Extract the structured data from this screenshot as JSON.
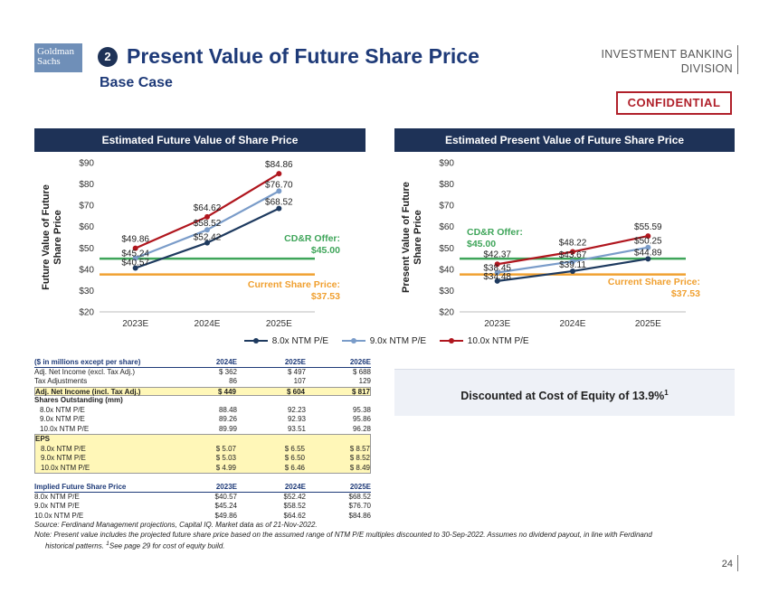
{
  "header": {
    "logo_line1": "Goldman",
    "logo_line2": "Sachs",
    "section_number": "2",
    "title": "Present Value of Future Share Price",
    "subtitle": "Base Case",
    "division_line1": "INVESTMENT BANKING",
    "division_line2": "DIVISION",
    "confidential": "CONFIDENTIAL"
  },
  "colors": {
    "navy": "#1e3257",
    "series_8x": "#1e3a5f",
    "series_9x": "#7a9cc9",
    "series_10x": "#b0161e",
    "offer_line": "#3fa55a",
    "current_price_line": "#f0a030"
  },
  "panels": {
    "left_title": "Estimated Future Value of Share Price",
    "right_title": "Estimated Present Value of Future Share Price"
  },
  "chart_data": [
    {
      "type": "line",
      "title": "Estimated Future Value of Share Price",
      "ylabel": "Future Value of Future Share Price",
      "categories": [
        "2023E",
        "2024E",
        "2025E"
      ],
      "ylim": [
        20,
        90
      ],
      "yticks": [
        "$20",
        "$30",
        "$40",
        "$50",
        "$60",
        "$70",
        "$80",
        "$90"
      ],
      "series": [
        {
          "name": "8.0x NTM P/E",
          "values": [
            40.57,
            52.42,
            68.52
          ],
          "labels": [
            "$40.57",
            "$52.42",
            "$68.52"
          ]
        },
        {
          "name": "9.0x NTM P/E",
          "values": [
            45.24,
            58.52,
            76.7
          ],
          "labels": [
            "$45.24",
            "$58.52",
            "$76.70"
          ]
        },
        {
          "name": "10.0x NTM P/E",
          "values": [
            49.86,
            64.62,
            84.86
          ],
          "labels": [
            "$49.86",
            "$64.62",
            "$84.86"
          ]
        }
      ],
      "reference_lines": [
        {
          "label_line1": "CD&R Offer:",
          "label_line2": "$45.00",
          "value": 45.0,
          "color": "#3fa55a"
        },
        {
          "label_line1": "Current Share Price:",
          "label_line2": "$37.53",
          "value": 37.53,
          "color": "#f0a030"
        }
      ],
      "grid": false
    },
    {
      "type": "line",
      "title": "Estimated Present Value of Future Share Price",
      "ylabel": "Present Value of Future Share Price",
      "categories": [
        "2023E",
        "2024E",
        "2025E"
      ],
      "ylim": [
        20,
        90
      ],
      "yticks": [
        "$20",
        "$30",
        "$40",
        "$50",
        "$60",
        "$70",
        "$80",
        "$90"
      ],
      "series": [
        {
          "name": "8.0x NTM P/E",
          "values": [
            34.48,
            39.11,
            44.89
          ],
          "labels": [
            "$34.48",
            "$39.11",
            "$44.89"
          ]
        },
        {
          "name": "9.0x NTM P/E",
          "values": [
            38.45,
            43.67,
            50.25
          ],
          "labels": [
            "$38.45",
            "$43.67",
            "$50.25"
          ]
        },
        {
          "name": "10.0x NTM P/E",
          "values": [
            42.37,
            48.22,
            55.59
          ],
          "labels": [
            "$42.37",
            "$48.22",
            "$55.59"
          ]
        }
      ],
      "reference_lines": [
        {
          "label_line1": "CD&R Offer:",
          "label_line2": "$45.00",
          "value": 45.0,
          "color": "#3fa55a"
        },
        {
          "label_line1": "Current Share Price:",
          "label_line2": "$37.53",
          "value": 37.53,
          "color": "#f0a030"
        }
      ],
      "grid": false
    }
  ],
  "legend": [
    "8.0x NTM P/E",
    "9.0x NTM P/E",
    "10.0x NTM P/E"
  ],
  "table1": {
    "header": [
      "($ in millions except per share)",
      "2024E",
      "2025E",
      "2026E"
    ],
    "rows": [
      {
        "label": "Adj. Net Income (excl. Tax Adj.)",
        "v": [
          "$ 362",
          "$ 497",
          "$ 688"
        ]
      },
      {
        "label": "Tax Adjustments",
        "v": [
          "86",
          "107",
          "129"
        ]
      },
      {
        "label": "Adj. Net Income (incl. Tax Adj.)",
        "v": [
          "$ 449",
          "$ 604",
          "$ 817"
        ]
      }
    ],
    "shares_title": "Shares Outstanding (mm)",
    "shares": [
      {
        "label": "8.0x NTM P/E",
        "v": [
          "88.48",
          "92.23",
          "95.38"
        ]
      },
      {
        "label": "9.0x NTM P/E",
        "v": [
          "89.26",
          "92.93",
          "95.86"
        ]
      },
      {
        "label": "10.0x NTM P/E",
        "v": [
          "89.99",
          "93.51",
          "96.28"
        ]
      }
    ],
    "eps_title": "EPS",
    "eps": [
      {
        "label": "8.0x NTM P/E",
        "v": [
          "$ 5.07",
          "$ 6.55",
          "$ 8.57"
        ]
      },
      {
        "label": "9.0x NTM P/E",
        "v": [
          "$ 5.03",
          "$ 6.50",
          "$ 8.52"
        ]
      },
      {
        "label": "10.0x NTM P/E",
        "v": [
          "$ 4.99",
          "$ 6.46",
          "$ 8.49"
        ]
      }
    ]
  },
  "table2": {
    "header": [
      "Implied Future Share Price",
      "2023E",
      "2024E",
      "2025E"
    ],
    "rows": [
      {
        "label": "8.0x NTM P/E",
        "v": [
          "$40.57",
          "$52.42",
          "$68.52"
        ]
      },
      {
        "label": "9.0x NTM P/E",
        "v": [
          "$45.24",
          "$58.52",
          "$76.70"
        ]
      },
      {
        "label": "10.0x NTM P/E",
        "v": [
          "$49.86",
          "$64.62",
          "$84.86"
        ]
      }
    ]
  },
  "discount_box": {
    "text": "Discounted at Cost of Equity of 13.9%",
    "sup": "1"
  },
  "footnotes": {
    "source": "Source: Ferdinand Management projections, Capital IQ. Market data as of 21-Nov-2022.",
    "note": "Note: Present value includes the projected future share price based on the assumed range of NTM P/E multiples discounted to 30-Sep-2022. Assumes no dividend payout, in line with Ferdinand",
    "note_cont": "historical patterns.",
    "note_sup": "1",
    "note_tail": "See page 29 for cost of equity build."
  },
  "page_number": "24"
}
